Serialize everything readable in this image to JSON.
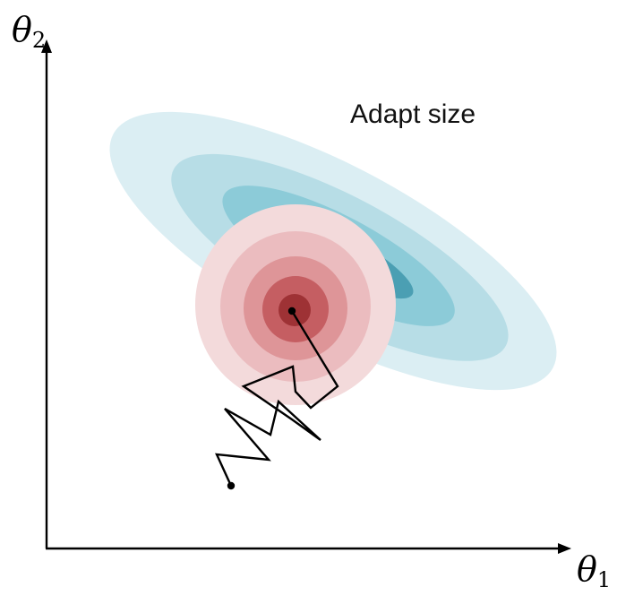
{
  "axes": {
    "y_symbol": "θ",
    "y_subscript": "2",
    "x_symbol": "θ",
    "x_subscript": "1"
  },
  "annotation": "Adapt size",
  "colors": {
    "axis": "#000000",
    "blue_levels": [
      "#dbeef3",
      "#b7dde6",
      "#8ccbd8",
      "#4b9fb3",
      "#2a7b8e"
    ],
    "red_levels": [
      "#f3dadb",
      "#ebbcbf",
      "#de9598",
      "#c55e62",
      "#9e3235",
      "#6b1c1e"
    ],
    "path": "#000000"
  },
  "icons": {
    "y_arrow": "arrow-up-icon",
    "x_arrow": "arrow-right-icon"
  }
}
